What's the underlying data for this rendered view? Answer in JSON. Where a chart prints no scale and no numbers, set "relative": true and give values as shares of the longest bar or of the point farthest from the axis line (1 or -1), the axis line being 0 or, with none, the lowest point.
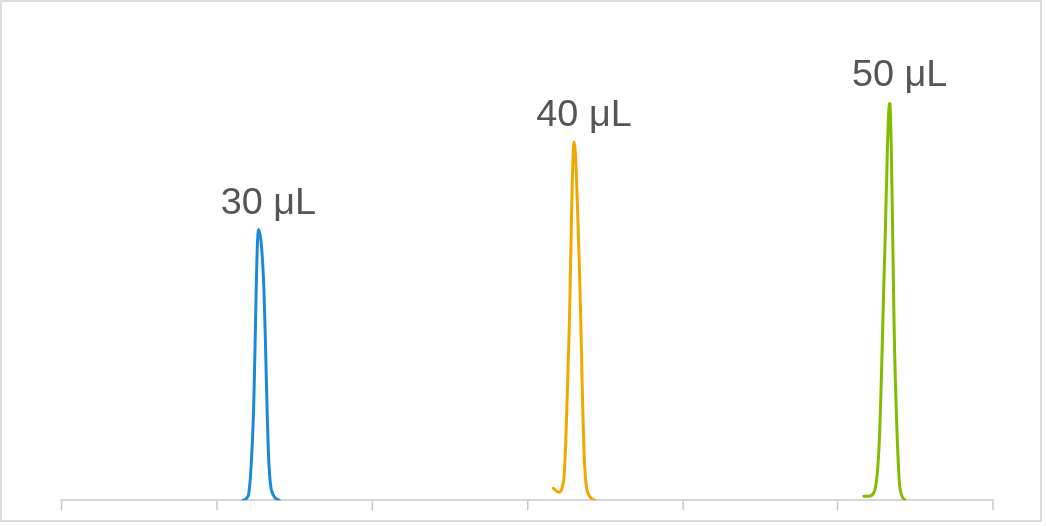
{
  "chart_data": {
    "type": "line",
    "relative": true,
    "grid": false,
    "legend": false,
    "marker": "none",
    "categories": [
      null,
      null,
      null,
      null,
      null,
      null,
      null,
      null,
      null,
      null,
      null,
      null,
      null,
      null,
      null,
      null,
      null,
      null,
      null,
      null,
      null,
      null,
      null,
      null,
      null,
      null,
      null,
      null,
      null,
      null,
      null,
      null,
      null,
      null,
      null,
      null,
      null,
      null,
      null,
      null,
      null,
      null,
      null,
      null,
      null,
      null,
      null,
      null,
      null,
      null,
      null,
      null,
      null,
      null,
      null,
      null,
      null,
      null,
      null,
      null,
      null,
      null,
      null,
      null,
      null,
      null,
      null,
      null,
      null,
      null,
      null,
      null,
      null,
      null,
      null,
      null,
      null,
      null,
      null,
      null,
      null,
      null,
      null,
      null,
      null,
      null,
      null,
      null,
      null,
      null,
      null,
      null,
      null,
      null,
      null,
      null,
      null,
      null,
      null,
      null,
      null,
      null,
      null,
      null,
      null,
      null,
      null,
      null,
      null,
      null,
      null,
      null,
      null,
      null,
      null,
      null,
      null,
      null,
      null,
      null,
      null,
      null,
      null,
      null,
      null,
      null,
      null,
      null,
      null,
      null,
      null,
      null,
      null,
      null,
      null,
      null,
      null,
      null,
      null,
      null,
      null,
      null,
      null,
      null,
      null,
      null,
      null,
      null,
      null,
      null,
      null,
      null,
      null,
      null,
      null,
      null,
      null,
      null,
      null,
      null,
      null,
      null,
      null,
      null,
      null,
      null,
      null,
      null,
      null,
      null,
      null,
      null,
      null,
      null,
      null,
      null,
      null,
      null,
      null,
      null,
      null
    ],
    "series": [
      {
        "name": "30 μL",
        "color": "#1a8ad8",
        "values": [
          null,
          null,
          null,
          null,
          null,
          null,
          null,
          null,
          null,
          null,
          null,
          null,
          null,
          null,
          null,
          null,
          null,
          null,
          null,
          null,
          null,
          null,
          null,
          null,
          null,
          null,
          null,
          null,
          null,
          null,
          null,
          null,
          null,
          null,
          null,
          0.0,
          0.01,
          0.2,
          0.68,
          0.55,
          0.1,
          0.01,
          0.0,
          null,
          null,
          null,
          null,
          null,
          null,
          null,
          null,
          null,
          null,
          null,
          null,
          null,
          null,
          null,
          null,
          null,
          null,
          null,
          null,
          null,
          null,
          null,
          null,
          null,
          null,
          null,
          null,
          null,
          null,
          null,
          null,
          null,
          null,
          null,
          null,
          null,
          null,
          null,
          null,
          null,
          null,
          null,
          null,
          null,
          null,
          null,
          null,
          null,
          null,
          null,
          null,
          null,
          null,
          null,
          null,
          null,
          null,
          null,
          null,
          null,
          null,
          null,
          null,
          null,
          null,
          null,
          null,
          null,
          null,
          null,
          null,
          null,
          null,
          null,
          null,
          null,
          null,
          null,
          null,
          null,
          null,
          null,
          null,
          null,
          null,
          null,
          null,
          null,
          null,
          null,
          null,
          null,
          null,
          null,
          null,
          null,
          null,
          null,
          null,
          null,
          null,
          null,
          null,
          null,
          null,
          null,
          null,
          null,
          null,
          null,
          null,
          null,
          null,
          null,
          null,
          null,
          null,
          null,
          null,
          null,
          null,
          null,
          null,
          null,
          null,
          null,
          null,
          null,
          null,
          null,
          null,
          null,
          null,
          null,
          null,
          null,
          null
        ]
      },
      {
        "name": "40 μL",
        "color": "#f0a800",
        "values": [
          null,
          null,
          null,
          null,
          null,
          null,
          null,
          null,
          null,
          null,
          null,
          null,
          null,
          null,
          null,
          null,
          null,
          null,
          null,
          null,
          null,
          null,
          null,
          null,
          null,
          null,
          null,
          null,
          null,
          null,
          null,
          null,
          null,
          null,
          null,
          null,
          null,
          null,
          null,
          null,
          null,
          null,
          null,
          null,
          null,
          null,
          null,
          null,
          null,
          null,
          null,
          null,
          null,
          null,
          null,
          null,
          null,
          null,
          null,
          null,
          null,
          null,
          null,
          null,
          null,
          null,
          null,
          null,
          null,
          null,
          null,
          null,
          null,
          null,
          null,
          null,
          null,
          null,
          null,
          null,
          null,
          null,
          null,
          null,
          null,
          null,
          null,
          null,
          null,
          null,
          null,
          null,
          null,
          null,
          null,
          0.03,
          0.02,
          0.05,
          0.4,
          0.9,
          0.6,
          0.1,
          0.01,
          0.0,
          null,
          null,
          null,
          null,
          null,
          null,
          null,
          null,
          null,
          null,
          null,
          null,
          null,
          null,
          null,
          null,
          null,
          null,
          null,
          null,
          null,
          null,
          null,
          null,
          null,
          null,
          null,
          null,
          null,
          null,
          null,
          null,
          null,
          null,
          null,
          null,
          null,
          null,
          null,
          null,
          null,
          null,
          null,
          null,
          null,
          null,
          null,
          null,
          null,
          null,
          null,
          null,
          null,
          null,
          null,
          null,
          null,
          null,
          null,
          null,
          null,
          null,
          null,
          null,
          null,
          null,
          null,
          null,
          null,
          null,
          null,
          null,
          null,
          null,
          null,
          null,
          null
        ]
      },
      {
        "name": "50 μL",
        "color": "#82bc00",
        "values": [
          null,
          null,
          null,
          null,
          null,
          null,
          null,
          null,
          null,
          null,
          null,
          null,
          null,
          null,
          null,
          null,
          null,
          null,
          null,
          null,
          null,
          null,
          null,
          null,
          null,
          null,
          null,
          null,
          null,
          null,
          null,
          null,
          null,
          null,
          null,
          null,
          null,
          null,
          null,
          null,
          null,
          null,
          null,
          null,
          null,
          null,
          null,
          null,
          null,
          null,
          null,
          null,
          null,
          null,
          null,
          null,
          null,
          null,
          null,
          null,
          null,
          null,
          null,
          null,
          null,
          null,
          null,
          null,
          null,
          null,
          null,
          null,
          null,
          null,
          null,
          null,
          null,
          null,
          null,
          null,
          null,
          null,
          null,
          null,
          null,
          null,
          null,
          null,
          null,
          null,
          null,
          null,
          null,
          null,
          null,
          null,
          null,
          null,
          null,
          null,
          null,
          null,
          null,
          null,
          null,
          null,
          null,
          null,
          null,
          null,
          null,
          null,
          null,
          null,
          null,
          null,
          null,
          null,
          null,
          null,
          null,
          null,
          null,
          null,
          null,
          null,
          null,
          null,
          null,
          null,
          null,
          null,
          null,
          null,
          null,
          null,
          null,
          null,
          null,
          null,
          null,
          null,
          null,
          null,
          null,
          null,
          null,
          null,
          null,
          null,
          null,
          null,
          null,
          null,
          null,
          0.01,
          0.01,
          0.02,
          0.15,
          0.6,
          1,
          0.35,
          0.03,
          0.0,
          null,
          null,
          null,
          null,
          null,
          null,
          null,
          null,
          null,
          null,
          null,
          null,
          null,
          null,
          null,
          null,
          null
        ]
      }
    ]
  }
}
